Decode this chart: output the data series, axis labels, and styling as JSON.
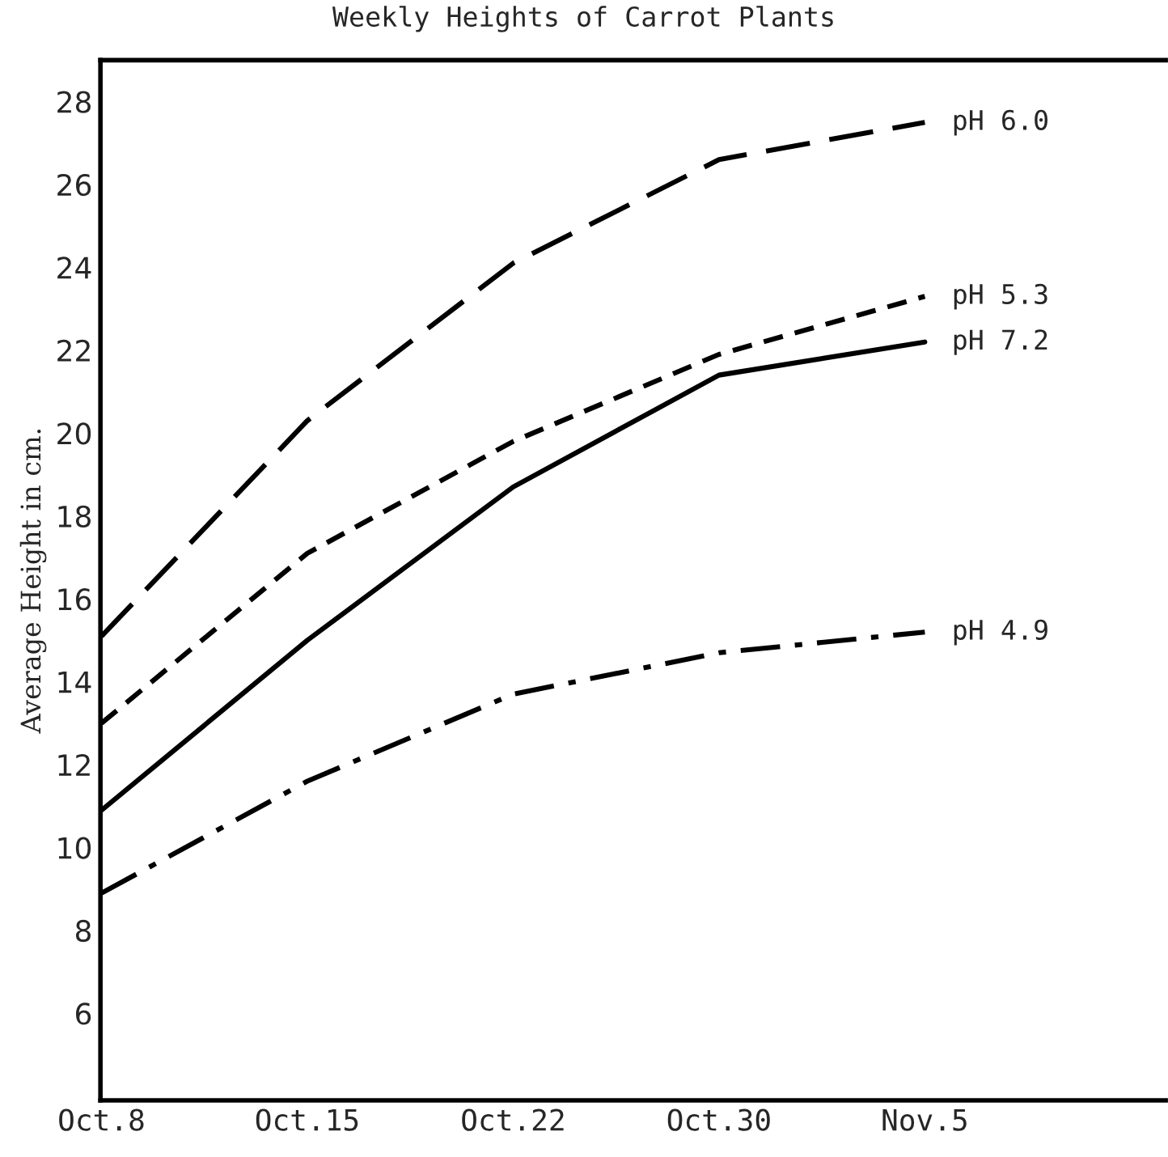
{
  "chart_data": {
    "type": "line",
    "title": "Weekly Heights of Carrot Plants",
    "ylabel": "Average Height in cm.",
    "categories": [
      "Oct.8",
      "Oct.15",
      "Oct.22",
      "Oct.30",
      "Nov.5"
    ],
    "series": [
      {
        "name": "pH 6.0",
        "color": "#000000",
        "line_style": "longdashed",
        "values": [
          15.1,
          20.3,
          24.1,
          26.6,
          27.5
        ]
      },
      {
        "name": "pH 5.3",
        "color": "#000000",
        "line_style": "dashed",
        "values": [
          13.0,
          17.1,
          19.8,
          21.9,
          23.3
        ]
      },
      {
        "name": "pH 7.2",
        "color": "#000000",
        "line_style": "solid",
        "values": [
          10.9,
          15.0,
          18.7,
          21.4,
          22.2
        ]
      },
      {
        "name": "pH 4.9",
        "color": "#000000",
        "line_style": "dashdot",
        "values": [
          8.9,
          11.6,
          13.7,
          14.7,
          15.2
        ]
      }
    ],
    "ylim": [
      3.9,
      29
    ],
    "yticks": [
      6,
      8,
      10,
      12,
      14,
      16,
      18,
      20,
      22,
      24,
      26,
      28
    ],
    "grid": false,
    "legend": false
  }
}
